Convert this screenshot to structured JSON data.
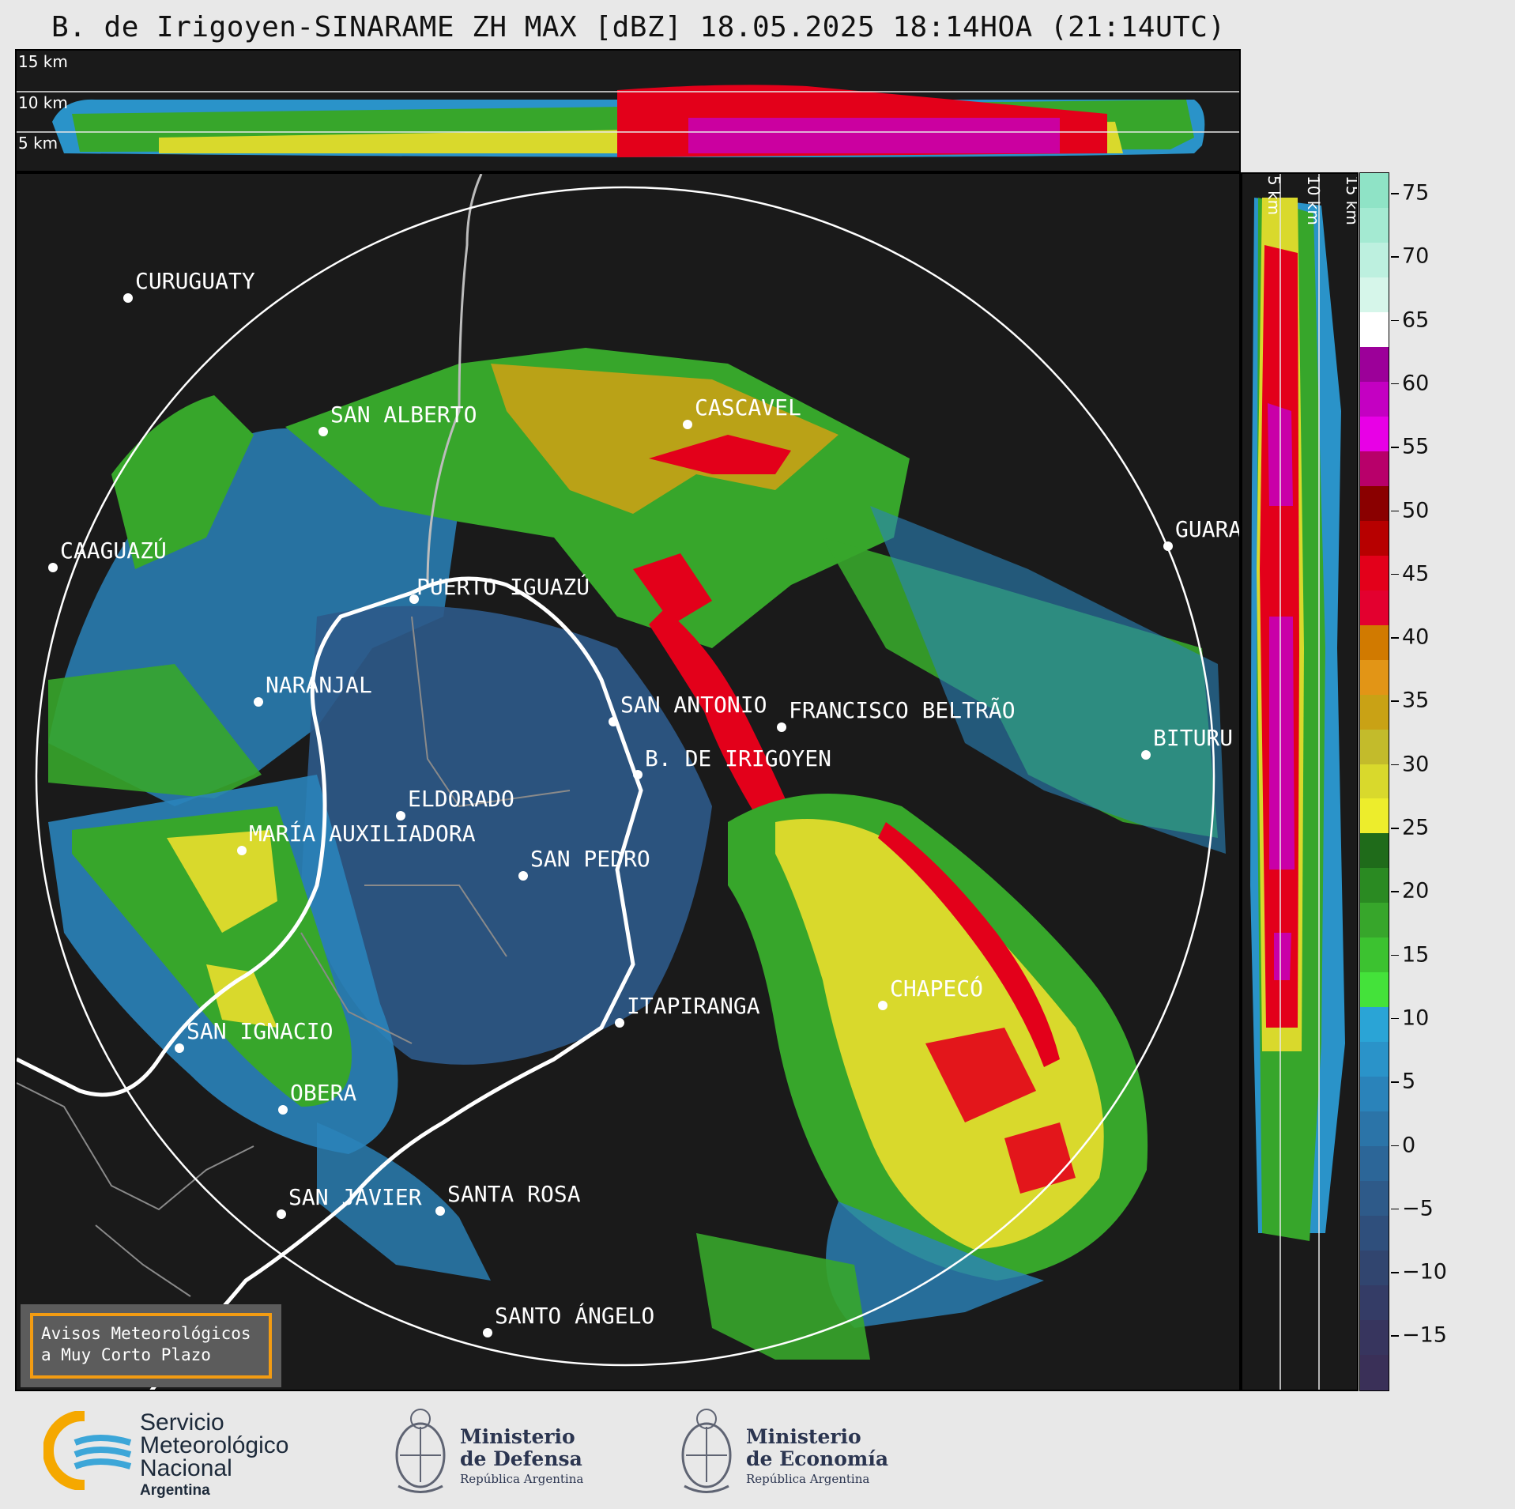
{
  "title": "B. de Irigoyen-SINARAME ZH MAX [dBZ] 18.05.2025 18:14HOA (21:14UTC)",
  "top_profile": {
    "height_labels": [
      "15 km",
      "10 km",
      "5 km"
    ]
  },
  "side_profile": {
    "height_labels": [
      "5 km",
      "10 km",
      "15 km"
    ]
  },
  "colorbar": {
    "unit": "dBZ",
    "ticks": [
      "75",
      "70",
      "65",
      "60",
      "55",
      "50",
      "45",
      "40",
      "35",
      "30",
      "25",
      "20",
      "15",
      "10",
      "5",
      "0",
      "−5",
      "−10",
      "−15"
    ],
    "colors_top_to_bottom": [
      "#8fe3c6",
      "#a4ead2",
      "#bdf0df",
      "#d6f6ea",
      "#ffffff",
      "#9c0099",
      "#c400c2",
      "#e800e6",
      "#b8006a",
      "#8a0000",
      "#b70000",
      "#e3001a",
      "#e3002f",
      "#d17a00",
      "#e29516",
      "#c9a215",
      "#c3bb2b",
      "#d9d92c",
      "#eded2c",
      "#1f6b1a",
      "#2a8a22",
      "#37a62b",
      "#3cc230",
      "#44e23a",
      "#2aa4d6",
      "#2a93c9",
      "#2a83ba",
      "#2b74a8",
      "#2c6698",
      "#2e5a89",
      "#2f4f7c",
      "#31456f",
      "#343c66",
      "#37355e",
      "#3a3058"
    ]
  },
  "cities": [
    {
      "name": "CURUGUATY"
    },
    {
      "name": "SAN ALBERTO"
    },
    {
      "name": "CAAGUAZÚ"
    },
    {
      "name": "CASCAVEL"
    },
    {
      "name": "GUARA"
    },
    {
      "name": "PUERTO IGUAZÚ"
    },
    {
      "name": "NARANJAL"
    },
    {
      "name": "SAN ANTONIO"
    },
    {
      "name": "FRANCISCO BELTRÃO"
    },
    {
      "name": "BITURU"
    },
    {
      "name": "B. DE IRIGOYEN"
    },
    {
      "name": "ELDORADO"
    },
    {
      "name": "MARÍA AUXILIADORA"
    },
    {
      "name": "SAN PEDRO"
    },
    {
      "name": "CHAPECÓ"
    },
    {
      "name": "ITAPIRANGA"
    },
    {
      "name": "SAN IGNACIO"
    },
    {
      "name": "OBERA"
    },
    {
      "name": "SAN JAVIER"
    },
    {
      "name": "SANTA ROSA"
    },
    {
      "name": "SANTO ÁNGELO"
    }
  ],
  "notice": {
    "line1": "Avisos Meteorológicos",
    "line2": "a Muy Corto Plazo"
  },
  "logos": {
    "smn": {
      "line1": "Servicio",
      "line2": "Meteorológico",
      "line3": "Nacional",
      "sub": "Argentina"
    },
    "defensa": {
      "line1": "Ministerio",
      "line2": "de Defensa",
      "sub": "República Argentina"
    },
    "economia": {
      "line1": "Ministerio",
      "line2": "de Economía",
      "sub": "República Argentina"
    }
  }
}
